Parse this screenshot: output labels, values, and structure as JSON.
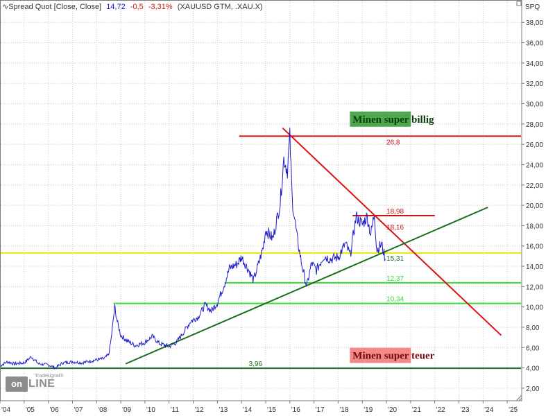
{
  "header": {
    "title": "∿Spread Quot [Close, Close]",
    "last": "14,72",
    "change": "-0,5",
    "change_pct": "-3,31%",
    "instruments": "(XAUUSD GTM, .XAU.X)"
  },
  "logo": {
    "prefix": "on",
    "suffix": "LINE",
    "brand": "Tradesignal®"
  },
  "chart_data": {
    "type": "line",
    "unit_label": "SPQ",
    "x_range": [
      2004,
      2025.6
    ],
    "ylim": [
      0.8,
      40.2
    ],
    "y_ticks": [
      "2,00",
      "4,00",
      "6,00",
      "8,00",
      "10,00",
      "12,00",
      "14,00",
      "16,00",
      "18,00",
      "20,00",
      "22,00",
      "24,00",
      "26,00",
      "28,00",
      "30,00",
      "32,00",
      "34,00",
      "36,00",
      "38,00"
    ],
    "x_tick_labels": [
      "'04",
      "'05",
      "'06",
      "'07",
      "'08",
      "'09",
      "'10",
      "'11",
      "'12",
      "'13",
      "'14",
      "'15",
      "'16",
      "'17",
      "'18",
      "'19",
      "'20",
      "'21",
      "'22",
      "'23",
      "'24",
      "'25"
    ],
    "series": [
      {
        "color": "#1c1cc8",
        "points": [
          [
            2004.0,
            4.2
          ],
          [
            2004.3,
            4.6
          ],
          [
            2004.6,
            4.4
          ],
          [
            2005.0,
            4.5
          ],
          [
            2005.3,
            5.1
          ],
          [
            2005.6,
            4.4
          ],
          [
            2006.0,
            4.3
          ],
          [
            2006.3,
            4.0
          ],
          [
            2006.6,
            4.5
          ],
          [
            2007.0,
            4.6
          ],
          [
            2007.4,
            4.5
          ],
          [
            2007.8,
            4.7
          ],
          [
            2008.0,
            4.8
          ],
          [
            2008.3,
            4.9
          ],
          [
            2008.5,
            5.3
          ],
          [
            2008.6,
            6.8
          ],
          [
            2008.75,
            10.0
          ],
          [
            2008.85,
            8.6
          ],
          [
            2009.0,
            7.2
          ],
          [
            2009.3,
            6.6
          ],
          [
            2009.6,
            6.2
          ],
          [
            2010.0,
            6.5
          ],
          [
            2010.3,
            7.1
          ],
          [
            2010.6,
            6.4
          ],
          [
            2011.0,
            6.1
          ],
          [
            2011.3,
            6.5
          ],
          [
            2011.6,
            7.5
          ],
          [
            2011.9,
            8.6
          ],
          [
            2012.2,
            9.0
          ],
          [
            2012.5,
            10.2
          ],
          [
            2012.75,
            9.6
          ],
          [
            2013.0,
            10.4
          ],
          [
            2013.3,
            12.3
          ],
          [
            2013.5,
            13.8
          ],
          [
            2013.8,
            14.2
          ],
          [
            2014.0,
            14.9
          ],
          [
            2014.3,
            13.6
          ],
          [
            2014.5,
            12.6
          ],
          [
            2014.7,
            14.2
          ],
          [
            2014.9,
            15.9
          ],
          [
            2015.0,
            17.6
          ],
          [
            2015.3,
            16.7
          ],
          [
            2015.6,
            20.2
          ],
          [
            2015.75,
            24.6
          ],
          [
            2015.9,
            23.4
          ],
          [
            2016.0,
            26.8
          ],
          [
            2016.1,
            20.5
          ],
          [
            2016.3,
            16.8
          ],
          [
            2016.5,
            14.1
          ],
          [
            2016.7,
            12.0
          ],
          [
            2016.9,
            14.3
          ],
          [
            2017.1,
            13.6
          ],
          [
            2017.4,
            15.0
          ],
          [
            2017.7,
            14.7
          ],
          [
            2018.0,
            14.9
          ],
          [
            2018.3,
            16.2
          ],
          [
            2018.5,
            15.1
          ],
          [
            2018.75,
            18.9
          ],
          [
            2019.0,
            18.1
          ],
          [
            2019.2,
            18.9
          ],
          [
            2019.35,
            17.1
          ],
          [
            2019.5,
            19.2
          ],
          [
            2019.6,
            15.6
          ],
          [
            2019.8,
            16.2
          ],
          [
            2019.95,
            14.72
          ]
        ]
      }
    ],
    "lines": [
      {
        "style": "resistance-top",
        "color": "#cc1111",
        "label": "26,8",
        "label_color": "#cc1111",
        "y": 26.8,
        "x_start": 2013.9,
        "x_end": 2025.6,
        "label_x": 2020.0
      },
      {
        "style": "resistance-mid",
        "color": "#cc1111",
        "label": "18,98",
        "label_color": "#cc1111",
        "y": 18.98,
        "x_start": 2018.6,
        "x_end": 2022.0,
        "label_x": 2020.0
      },
      {
        "style": "resistance-mid-label-only",
        "color": "#cc1111",
        "label": "18,16",
        "label_color": "#cc1111",
        "y": 18.16,
        "x_start": null,
        "x_end": null,
        "label_x": 2020.0
      },
      {
        "style": "yellow-level",
        "color": "#f2e200",
        "label": "15,31",
        "label_color": "#1b6e1b",
        "y": 15.31,
        "x_start": 2004.0,
        "x_end": 2025.6,
        "label_x": 2020.0
      },
      {
        "style": "support",
        "color": "#33dd33",
        "label": "12,37",
        "label_color": "#33dd33",
        "y": 12.37,
        "x_start": 2013.3,
        "x_end": 2025.6,
        "label_x": 2020.0
      },
      {
        "style": "support",
        "color": "#33dd33",
        "label": "10,34",
        "label_color": "#33dd33",
        "y": 10.34,
        "x_start": 2008.7,
        "x_end": 2025.6,
        "label_x": 2020.0
      },
      {
        "style": "base",
        "color": "#1b6e1b",
        "label": "3,96",
        "label_color": "#1b6e1b",
        "y": 3.96,
        "x_start": 2004.0,
        "x_end": 2025.6,
        "label_x": 2014.3
      }
    ],
    "trendlines": [
      {
        "color": "#dd1111",
        "from": [
          2015.7,
          27.6
        ],
        "to": [
          2024.75,
          7.2
        ]
      },
      {
        "color": "#1b6e1b",
        "from": [
          2009.2,
          4.4
        ],
        "to": [
          2024.2,
          19.8
        ]
      }
    ],
    "annotations": [
      {
        "text": "Minen super billig",
        "bg": "#4fa84f",
        "color": "#0a3d0a",
        "x": 2018.6,
        "y": 28.0
      },
      {
        "text": "Minen super teuer",
        "bg": "#f28a8a",
        "color": "#7a0a0a",
        "x": 2018.6,
        "y": 4.75
      }
    ],
    "grid": true,
    "legend": "none"
  }
}
